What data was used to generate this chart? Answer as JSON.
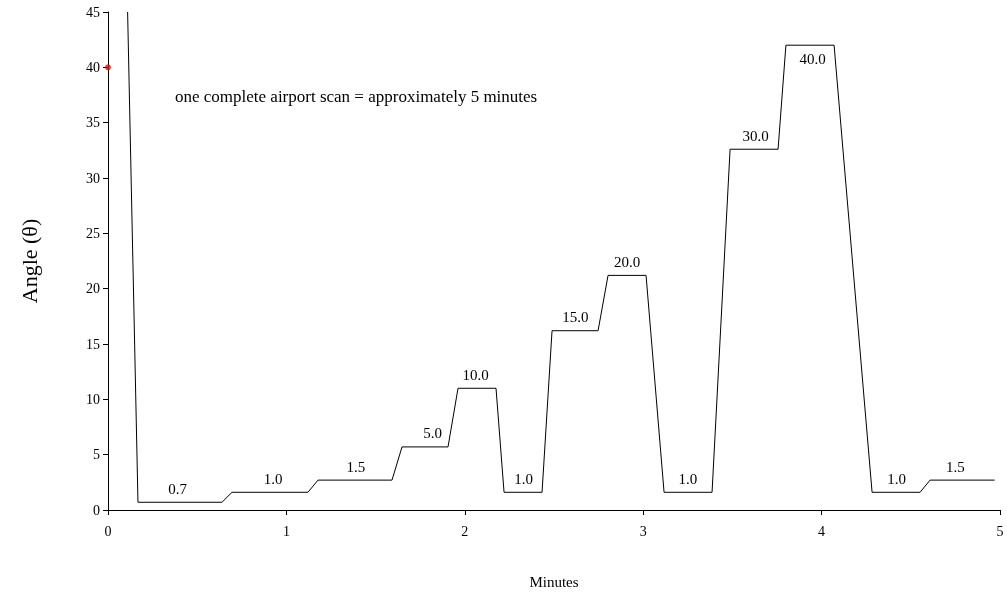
{
  "chart_data": {
    "type": "line",
    "xlabel": "Minutes",
    "ylabel": "Angle (θ)",
    "xlim": [
      0,
      5
    ],
    "xticks": [
      0,
      1,
      2,
      3,
      4,
      5
    ],
    "ylim": [
      0,
      45
    ],
    "yticks": [
      0,
      5,
      10,
      15,
      20,
      25,
      30,
      35,
      40,
      45
    ],
    "grid": false,
    "marker": "none",
    "line_style": "solid",
    "series": [
      {
        "type": "line",
        "color": "#000000",
        "x": [
          0.11,
          0.168,
          0.639,
          0.695,
          1.121,
          1.177,
          1.592,
          1.648,
          1.906,
          1.962,
          2.175,
          2.22,
          2.433,
          2.489,
          2.747,
          2.803,
          3.016,
          3.117,
          3.386,
          3.487,
          3.756,
          3.8,
          4.07,
          4.283,
          4.552,
          4.608,
          4.97
        ],
        "values": [
          45,
          0.7,
          0.7,
          1.6,
          1.6,
          2.7,
          2.7,
          5.7,
          5.7,
          11,
          11,
          1.6,
          1.6,
          16.2,
          16.2,
          21.2,
          21.2,
          1.6,
          1.6,
          32.6,
          32.6,
          42,
          42,
          1.6,
          1.6,
          2.7,
          2.7
        ]
      },
      {
        "type": "scatter",
        "color": "#ff0000",
        "x": [
          0
        ],
        "values": [
          40
        ]
      }
    ],
    "annotations": [
      "one complete airport scan = approximately 5 minutes",
      {
        "text": "0.7",
        "x": 0.39,
        "y": 0.7
      },
      {
        "text": "1.0",
        "x": 0.925,
        "y": 1.6
      },
      {
        "text": "1.5",
        "x": 1.39,
        "y": 2.7
      },
      {
        "text": "5.0",
        "x": 1.82,
        "y": 5.7
      },
      {
        "text": "10.0",
        "x": 2.06,
        "y": 11
      },
      {
        "text": "1.0",
        "x": 2.33,
        "y": 1.6
      },
      {
        "text": "15.0",
        "x": 2.62,
        "y": 16.2
      },
      {
        "text": "20.0",
        "x": 2.91,
        "y": 21.2
      },
      {
        "text": "1.0",
        "x": 3.25,
        "y": 1.6
      },
      {
        "text": "30.0",
        "x": 3.63,
        "y": 32.6
      },
      {
        "text": "40.0",
        "x": 3.95,
        "y": 42
      },
      {
        "text": "1.0",
        "x": 4.42,
        "y": 1.6
      },
      {
        "text": "1.5",
        "x": 4.75,
        "y": 2.7
      }
    ]
  }
}
